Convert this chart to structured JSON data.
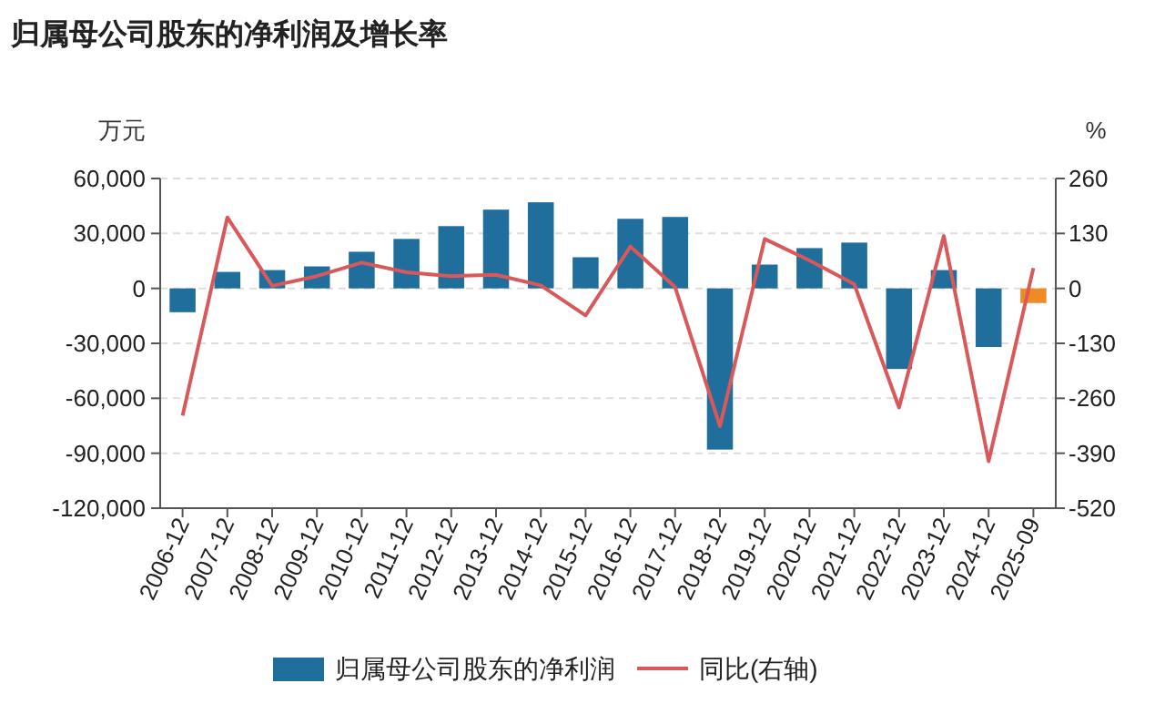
{
  "chart_data": {
    "type": "bar",
    "title": "归属母公司股东的净利润及增长率",
    "ylabel": "万元",
    "y2label": "%",
    "categories": [
      "2006-12",
      "2007-12",
      "2008-12",
      "2009-12",
      "2010-12",
      "2011-12",
      "2012-12",
      "2013-12",
      "2014-12",
      "2015-12",
      "2016-12",
      "2017-12",
      "2018-12",
      "2019-12",
      "2020-12",
      "2021-12",
      "2022-12",
      "2023-12",
      "2024-12",
      "2025-09"
    ],
    "series": [
      {
        "name": "归属母公司股东的净利润",
        "color": "#1f6e9c",
        "colors": [
          "#1f6e9c",
          "#1f6e9c",
          "#1f6e9c",
          "#1f6e9c",
          "#1f6e9c",
          "#1f6e9c",
          "#1f6e9c",
          "#1f6e9c",
          "#1f6e9c",
          "#1f6e9c",
          "#1f6e9c",
          "#1f6e9c",
          "#1f6e9c",
          "#1f6e9c",
          "#1f6e9c",
          "#1f6e9c",
          "#1f6e9c",
          "#1f6e9c",
          "#1f6e9c",
          "#f08a24"
        ],
        "values": [
          -13000,
          9000,
          10000,
          12000,
          20000,
          27000,
          34000,
          43000,
          47000,
          17000,
          38000,
          39000,
          -88000,
          13000,
          22000,
          25000,
          -44000,
          10000,
          -32000,
          -8000
        ]
      },
      {
        "name": "同比(右轴)",
        "type": "line",
        "axis": "y2",
        "color": "#d9595b",
        "values": [
          -301,
          168,
          6,
          29,
          61,
          38,
          29,
          32,
          7,
          -64,
          99,
          3,
          -326,
          117,
          66,
          10,
          -282,
          124,
          -409,
          48
        ]
      }
    ],
    "ylim": [
      -120000,
      60000
    ],
    "yticks": [
      {
        "value": -120000,
        "label": "-120,000"
      },
      {
        "value": -90000,
        "label": "-90,000"
      },
      {
        "value": -60000,
        "label": "-60,000"
      },
      {
        "value": -30000,
        "label": "-30,000"
      },
      0,
      {
        "value": 30000,
        "label": "30,000"
      },
      {
        "value": 60000,
        "label": "60,000"
      }
    ],
    "y2lim": [
      -520,
      260
    ],
    "y2ticks": [
      -520,
      -390,
      -260,
      -130,
      0,
      130,
      260
    ],
    "grid": "y",
    "legend": "bottom",
    "line_style": "solid",
    "marker": "none"
  }
}
